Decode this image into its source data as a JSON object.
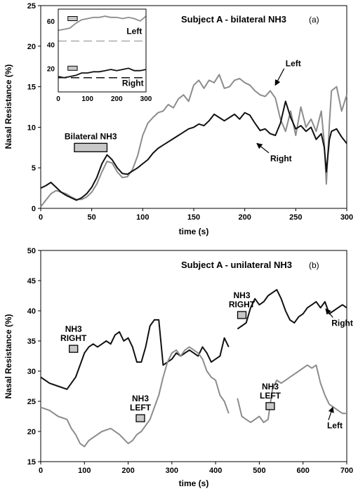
{
  "chart_data": [
    {
      "type": "line",
      "title": "Subject A - bilateral NH3",
      "panel": "(a)",
      "xlabel": "time (s)",
      "ylabel": "Nasal Resistance (%)",
      "xlim": [
        0,
        300
      ],
      "ylim": [
        0,
        25
      ],
      "xticks": [
        0,
        50,
        100,
        150,
        200,
        250,
        300
      ],
      "yticks": [
        0,
        5,
        10,
        15,
        20,
        25
      ],
      "grid": false,
      "series": [
        {
          "name": "Left",
          "color": "#8c8c8c",
          "x": [
            0,
            5,
            10,
            15,
            20,
            25,
            30,
            35,
            40,
            45,
            50,
            55,
            60,
            65,
            70,
            75,
            80,
            85,
            90,
            95,
            100,
            105,
            110,
            115,
            120,
            125,
            130,
            135,
            140,
            145,
            150,
            155,
            160,
            165,
            170,
            175,
            180,
            185,
            190,
            195,
            200,
            205,
            210,
            215,
            220,
            225,
            230,
            235,
            240,
            245,
            250,
            255,
            260,
            265,
            270,
            275,
            278,
            280,
            283,
            285,
            290,
            295,
            300
          ],
          "values": [
            0.2,
            1.0,
            1.8,
            2.2,
            2.0,
            1.8,
            1.4,
            1.1,
            1.1,
            1.4,
            2.0,
            3.0,
            4.5,
            5.8,
            5.6,
            4.5,
            3.8,
            3.9,
            4.8,
            6.5,
            9.0,
            10.5,
            11.2,
            11.8,
            12.0,
            12.8,
            12.4,
            13.5,
            14.0,
            13.2,
            15.2,
            15.8,
            14.8,
            15.8,
            15.5,
            16.5,
            14.8,
            15.0,
            15.8,
            16.0,
            15.5,
            15.2,
            14.5,
            14.0,
            13.8,
            14.5,
            13.6,
            11.0,
            9.5,
            12.0,
            9.0,
            12.5,
            10.0,
            11.0,
            9.5,
            12.0,
            8.0,
            3.0,
            10.5,
            14.5,
            15.0,
            12.0,
            14.0
          ]
        },
        {
          "name": "Right",
          "color": "#111111",
          "x": [
            0,
            5,
            10,
            15,
            20,
            25,
            30,
            35,
            40,
            45,
            50,
            55,
            60,
            65,
            70,
            75,
            80,
            85,
            90,
            95,
            100,
            105,
            110,
            115,
            120,
            125,
            130,
            135,
            140,
            145,
            150,
            155,
            160,
            165,
            170,
            175,
            180,
            185,
            190,
            195,
            200,
            205,
            210,
            215,
            220,
            225,
            230,
            235,
            240,
            245,
            250,
            255,
            260,
            265,
            270,
            275,
            278,
            280,
            283,
            285,
            290,
            295,
            300
          ],
          "values": [
            2.5,
            2.8,
            3.2,
            2.6,
            2.0,
            1.6,
            1.3,
            1.0,
            1.3,
            1.8,
            2.6,
            3.8,
            5.5,
            6.6,
            6.0,
            5.0,
            4.3,
            4.2,
            4.6,
            5.0,
            5.5,
            6.0,
            6.8,
            7.4,
            7.8,
            8.2,
            8.6,
            9.0,
            9.4,
            9.8,
            10.0,
            10.4,
            10.2,
            10.8,
            11.6,
            11.2,
            10.8,
            11.2,
            11.6,
            11.0,
            11.8,
            11.5,
            10.5,
            9.6,
            9.8,
            9.2,
            9.0,
            10.5,
            13.2,
            11.2,
            9.8,
            10.2,
            9.5,
            10.0,
            8.5,
            9.2,
            7.5,
            4.5,
            8.5,
            9.5,
            9.8,
            8.8,
            8.0
          ]
        }
      ],
      "stimulus_bar": {
        "label": "Bilateral NH3",
        "x_start": 33,
        "x_end": 65,
        "y": 7.5
      },
      "annotations": [
        {
          "text": "Left",
          "x": 240,
          "y": 17.5,
          "arrow_to": [
            230,
            15.2
          ]
        },
        {
          "text": "Right",
          "x": 225,
          "y": 5.8,
          "arrow_to": [
            212,
            8.0
          ]
        }
      ],
      "inset": {
        "xlim": [
          0,
          300
        ],
        "ylim": [
          0,
          70
        ],
        "xticks": [
          0,
          100,
          200,
          300
        ],
        "yticks": [
          20,
          40,
          60
        ],
        "labels": [
          {
            "text": "Left",
            "x": 260,
            "y": 49
          },
          {
            "text": "Right",
            "x": 255,
            "y": 5
          }
        ],
        "reference_lines": [
          {
            "y": 43,
            "color": "#aaaaaa"
          },
          {
            "y": 12,
            "color": "#111111"
          }
        ],
        "stimulus_bars": [
          {
            "x_start": 33,
            "x_end": 65,
            "y": 62
          },
          {
            "x_start": 33,
            "x_end": 65,
            "y": 20
          }
        ],
        "series": [
          {
            "name": "Left",
            "color": "#8c8c8c",
            "x": [
              0,
              20,
              40,
              60,
              80,
              100,
              120,
              140,
              160,
              180,
              200,
              220,
              240,
              260,
              280,
              300
            ],
            "values": [
              52,
              53,
              54,
              58,
              61,
              62,
              63,
              63,
              64,
              63,
              63,
              62,
              63,
              62,
              60,
              64
            ]
          },
          {
            "name": "Right",
            "color": "#111111",
            "x": [
              0,
              20,
              40,
              60,
              80,
              100,
              120,
              140,
              160,
              180,
              200,
              220,
              240,
              260,
              280,
              300
            ],
            "values": [
              13,
              12,
              13,
              14,
              16,
              16,
              17,
              17,
              18,
              19,
              18,
              19,
              20,
              18,
              18,
              19
            ]
          }
        ]
      }
    },
    {
      "type": "line",
      "title": "Subject A - unilateral NH3",
      "panel": "(b)",
      "xlabel": "time (s)",
      "ylabel": "Nasal Resistance (%)",
      "xlim": [
        0,
        700
      ],
      "ylim": [
        15,
        50
      ],
      "xticks": [
        0,
        100,
        200,
        300,
        400,
        500,
        600,
        700
      ],
      "yticks": [
        15,
        20,
        25,
        30,
        35,
        40,
        45,
        50
      ],
      "grid": false,
      "series": [
        {
          "name": "Right",
          "color": "#111111",
          "segments": [
            {
              "x": [
                0,
                20,
                40,
                60,
                70,
                80,
                90,
                100,
                110,
                120,
                130,
                140,
                150,
                160,
                170,
                180,
                190,
                200,
                210,
                220,
                230,
                240,
                250,
                260,
                270,
                280,
                290,
                300,
                310,
                320,
                330,
                340,
                350,
                360,
                370,
                380,
                390,
                400,
                410,
                420,
                430
              ],
              "values": [
                29,
                28,
                27.5,
                27,
                28,
                29,
                31,
                33,
                34,
                34.5,
                34,
                34.5,
                35,
                34.5,
                36,
                36.5,
                35,
                35.5,
                34,
                31.5,
                31.5,
                34,
                37.5,
                38.5,
                38.5,
                31,
                31.5,
                32,
                33,
                32.5,
                33,
                33.5,
                33,
                32.5,
                34,
                33,
                31.5,
                32,
                32.5,
                35.5,
                34
              ]
            },
            {
              "x": [
                450,
                460,
                470,
                480,
                490,
                500,
                510,
                520,
                530,
                540,
                550,
                560,
                570,
                580,
                590,
                600,
                610,
                620,
                630,
                640,
                650,
                660,
                670,
                680,
                690,
                700
              ],
              "values": [
                37,
                37.5,
                38,
                40.5,
                42,
                41,
                41.5,
                42.5,
                43,
                43.5,
                42,
                40,
                38.5,
                38,
                39,
                39.5,
                40.5,
                41,
                41.5,
                40.5,
                41.5,
                39.5,
                40,
                40.5,
                41,
                40.5
              ]
            }
          ]
        },
        {
          "name": "Left",
          "color": "#8c8c8c",
          "segments": [
            {
              "x": [
                0,
                20,
                40,
                60,
                70,
                80,
                90,
                100,
                110,
                120,
                140,
                160,
                180,
                200,
                210,
                220,
                230,
                240,
                250,
                260,
                270,
                280,
                290,
                300,
                310,
                320,
                330,
                340,
                350,
                360,
                370,
                380,
                390,
                400,
                410,
                420,
                430
              ],
              "values": [
                24,
                23.5,
                22.5,
                22,
                20.5,
                19.5,
                18,
                17.5,
                18.5,
                19,
                20,
                20.5,
                19.5,
                18,
                18.5,
                19.5,
                20,
                21,
                22,
                24,
                26,
                29,
                31.5,
                33,
                33.5,
                32.5,
                33.5,
                34,
                33.5,
                33,
                32,
                30,
                29,
                28.5,
                26,
                25,
                23
              ]
            },
            {
              "x": [
                450,
                460,
                470,
                480,
                490,
                500,
                510,
                520,
                530,
                540,
                550,
                560,
                570,
                580,
                590,
                600,
                610,
                620,
                630,
                640,
                650,
                660,
                670,
                680,
                690,
                700
              ],
              "values": [
                25.5,
                22.5,
                22,
                21.5,
                22,
                22.5,
                21.5,
                22,
                27,
                28.5,
                28,
                28.5,
                29,
                29.5,
                30,
                30.5,
                31,
                30.5,
                31,
                28,
                26,
                24.5,
                24,
                23.5,
                23,
                23
              ]
            }
          ]
        }
      ],
      "stimulus_markers": [
        {
          "label_line1": "NH3",
          "label_line2": "RIGHT",
          "x": 75,
          "y": 33.7
        },
        {
          "label_line1": "NH3",
          "label_line2": "LEFT",
          "x": 228,
          "y": 22.2
        },
        {
          "label_line1": "NH3",
          "label_line2": "RIGHT",
          "x": 460,
          "y": 39.3
        },
        {
          "label_line1": "NH3",
          "label_line2": "LEFT",
          "x": 525,
          "y": 24.2
        }
      ],
      "annotations": [
        {
          "text": "Right",
          "x": 665,
          "y": 37.5,
          "arrow_to": [
            652,
            40.3
          ]
        },
        {
          "text": "Left",
          "x": 655,
          "y": 20.5,
          "arrow_to": [
            668,
            24.0
          ]
        }
      ]
    }
  ]
}
